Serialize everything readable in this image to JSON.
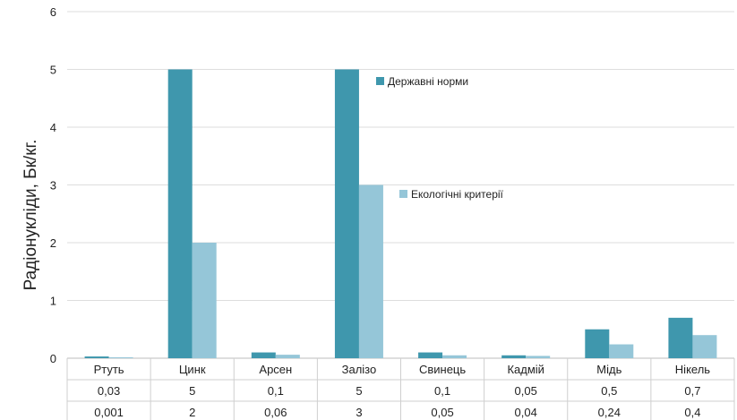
{
  "chart_data": {
    "type": "bar",
    "ylabel": "Радіонукліди, Бк/кг.",
    "ylim": [
      0,
      6
    ],
    "yticks": [
      "0",
      "1",
      "2",
      "3",
      "4",
      "5",
      "6"
    ],
    "categories": [
      "Ртуть",
      "Цинк",
      "Арсен",
      "Залізо",
      "Свинець",
      "Кадмій",
      "Мідь",
      "Нікель"
    ],
    "series": [
      {
        "name": "Державні норми",
        "color": "#3f97ad",
        "values": [
          0.03,
          5,
          0.1,
          5,
          0.1,
          0.05,
          0.5,
          0.7
        ],
        "table_labels": [
          "0,03",
          "5",
          "0,1",
          "5",
          "0,1",
          "0,05",
          "0,5",
          "0,7"
        ]
      },
      {
        "name": "Екологічні критерії",
        "color": "#95c6d8",
        "values": [
          0.001,
          2,
          0.06,
          3,
          0.05,
          0.04,
          0.24,
          0.4
        ],
        "table_labels": [
          "0,001",
          "2",
          "0,06",
          "3",
          "0,05",
          "0,04",
          "0,24",
          "0,4"
        ]
      }
    ],
    "grid": true,
    "legend": "inside-plot"
  }
}
